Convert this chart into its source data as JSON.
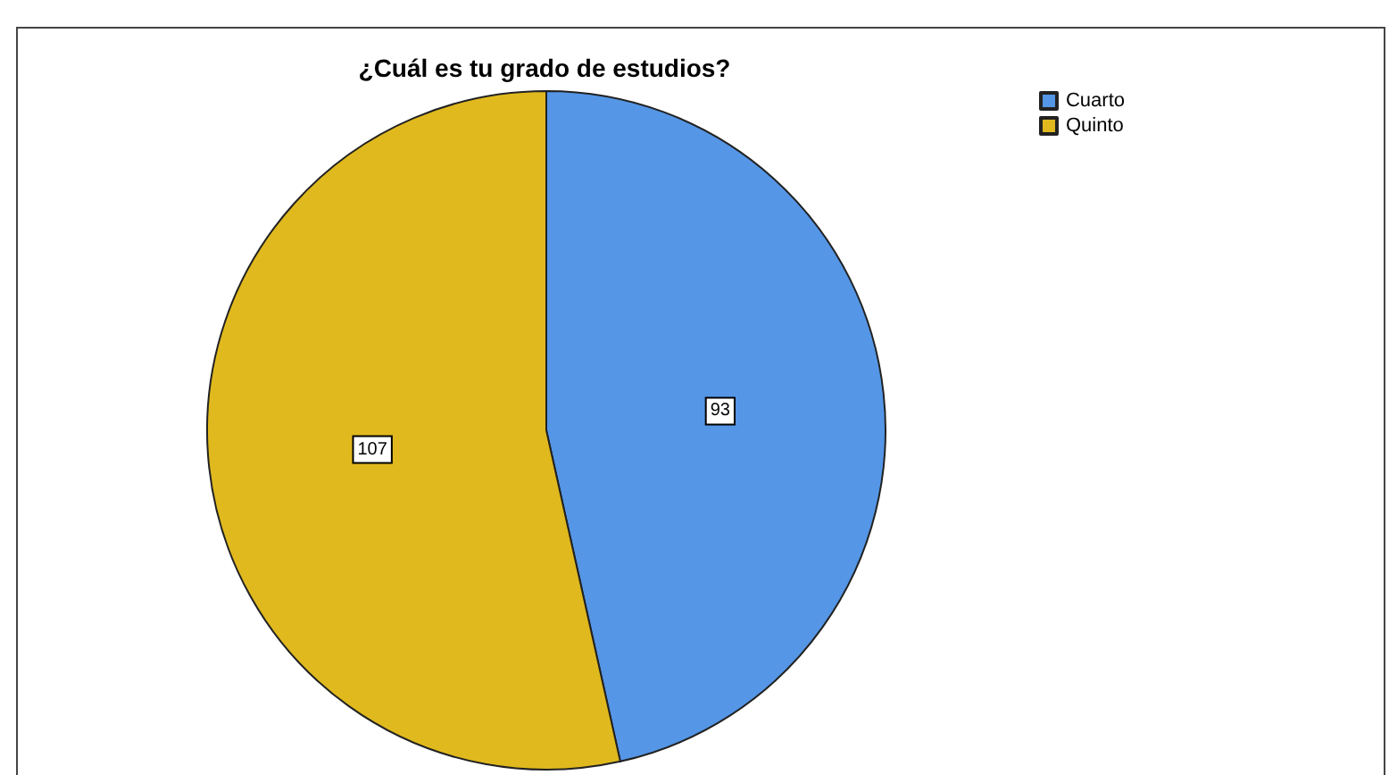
{
  "chart_data": {
    "type": "pie",
    "title": "¿Cuál es tu grado de estudios?",
    "categories": [
      "Cuarto",
      "Quinto"
    ],
    "values": [
      93,
      107
    ],
    "colors": [
      "#5596e6",
      "#e0b91e"
    ],
    "data_labels": true,
    "legend": "top right"
  }
}
